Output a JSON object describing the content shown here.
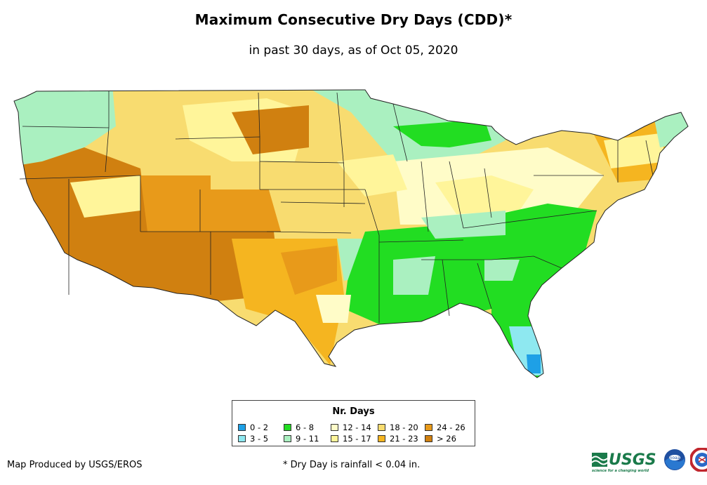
{
  "header": {
    "title": "Maximum Consecutive Dry Days (CDD)*",
    "subtitle": "in past 30 days, as of Oct 05, 2020"
  },
  "legend": {
    "title": "Nr. Days",
    "items": [
      {
        "label": "0 - 2",
        "color": "#1ea0e6"
      },
      {
        "label": "3 - 5",
        "color": "#8ee8f0"
      },
      {
        "label": "6 - 8",
        "color": "#22dd22"
      },
      {
        "label": "9 - 11",
        "color": "#aaf0c0"
      },
      {
        "label": "12 - 14",
        "color": "#fffcc8"
      },
      {
        "label": "15 - 17",
        "color": "#fff59a"
      },
      {
        "label": "18 - 20",
        "color": "#f8dc70"
      },
      {
        "label": "21 - 23",
        "color": "#f5b520"
      },
      {
        "label": "24 - 26",
        "color": "#e89a1a"
      },
      {
        "label": "> 26",
        "color": "#d08010"
      }
    ]
  },
  "footer": {
    "credit": "Map Produced by USGS/EROS",
    "footnote": "* Dry Day is rainfall < 0.04 in.",
    "usgs_text": "USGS",
    "usgs_tagline": "science for a changing world",
    "noaa_text": "noaa"
  },
  "icons": {
    "usgs": "usgs-logo-icon",
    "noaa": "noaa-logo-icon",
    "nws": "nws-logo-icon"
  }
}
